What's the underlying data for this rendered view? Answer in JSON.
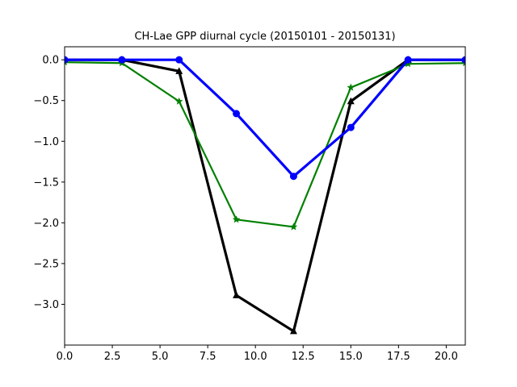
{
  "chart_data": {
    "type": "line",
    "title": "CH-Lae GPP diurnal cycle (20150101 - 20150131)",
    "xlabel": "",
    "ylabel": "",
    "xlim": [
      0,
      21
    ],
    "ylim": [
      -3.5,
      0.16
    ],
    "x_ticks": [
      0.0,
      2.5,
      5.0,
      7.5,
      10.0,
      12.5,
      15.0,
      17.5,
      20.0
    ],
    "x_tick_labels": [
      "0.0",
      "2.5",
      "5.0",
      "7.5",
      "10.0",
      "12.5",
      "15.0",
      "17.5",
      "20.0"
    ],
    "y_ticks": [
      0.0,
      -0.5,
      -1.0,
      -1.5,
      -2.0,
      -2.5,
      -3.0
    ],
    "y_tick_labels": [
      "0.0",
      "−0.5",
      "−1.0",
      "−1.5",
      "−2.0",
      "−2.5",
      "−3.0"
    ],
    "grid": false,
    "legend": "none",
    "series": [
      {
        "color": "#000000",
        "marker": "triangle",
        "line_weight": "thick",
        "x": [
          0,
          3,
          6,
          9,
          12,
          15,
          18,
          21
        ],
        "y": [
          0.0,
          0.0,
          -0.14,
          -2.89,
          -3.33,
          -0.51,
          0.0,
          0.0
        ]
      },
      {
        "color": "#008000",
        "marker": "star",
        "line_weight": "normal",
        "x": [
          0,
          3,
          6,
          9,
          12,
          15,
          18,
          21
        ],
        "y": [
          -0.03,
          -0.04,
          -0.51,
          -1.96,
          -2.05,
          -0.34,
          -0.05,
          -0.04
        ]
      },
      {
        "color": "#0000ff",
        "marker": "circle",
        "line_weight": "thick",
        "x": [
          0,
          3,
          6,
          9,
          12,
          15,
          18,
          21
        ],
        "y": [
          0.0,
          0.0,
          0.0,
          -0.66,
          -1.43,
          -0.83,
          0.0,
          0.0
        ]
      }
    ]
  }
}
